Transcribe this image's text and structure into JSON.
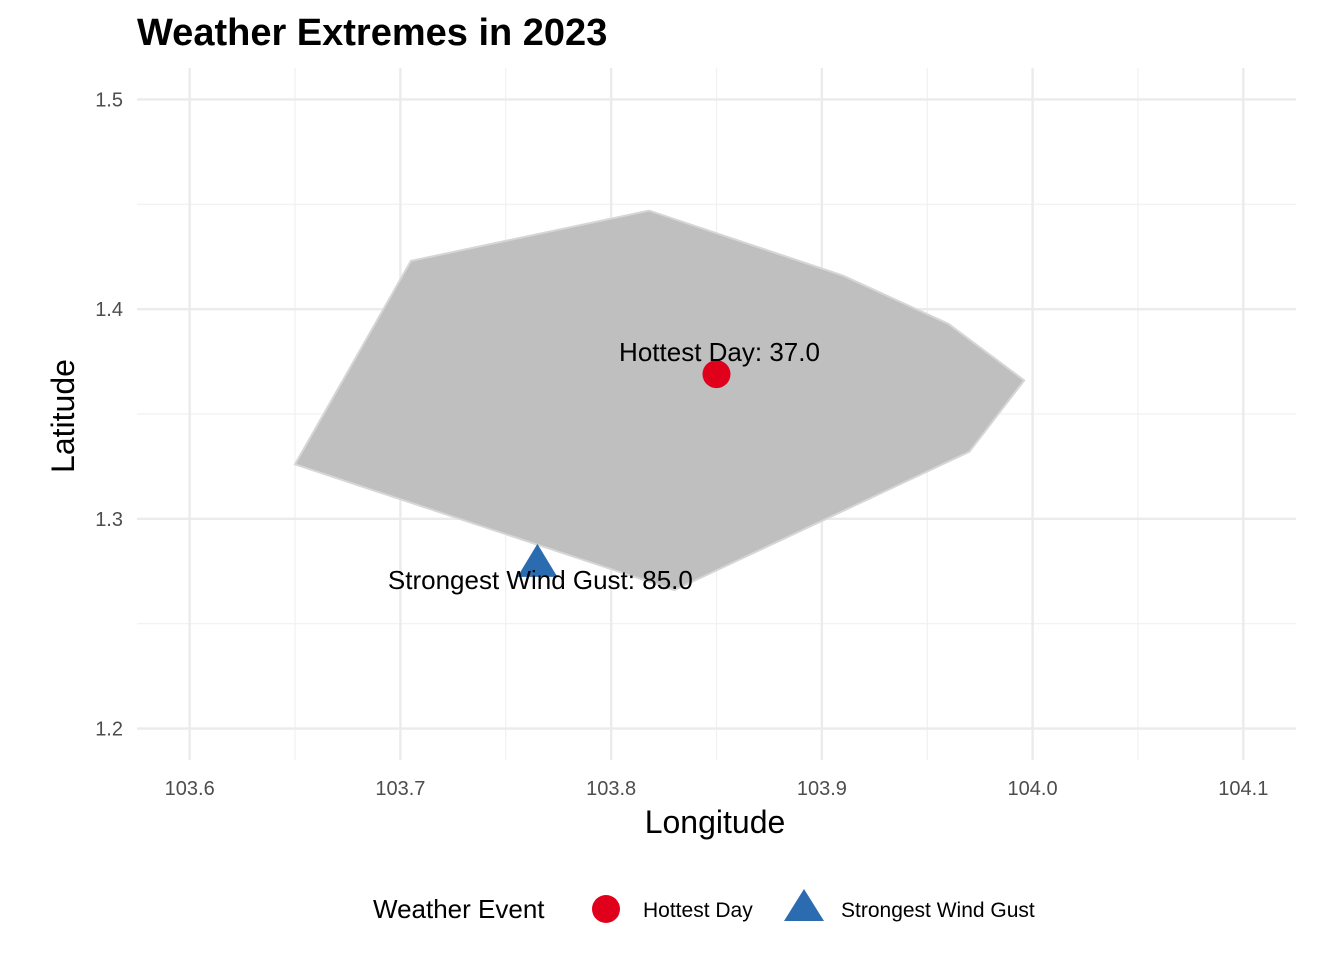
{
  "chart_data": {
    "type": "scatter",
    "title": "Weather Extremes in 2023",
    "xlabel": "Longitude",
    "ylabel": "Latitude",
    "xlim": [
      103.575,
      104.125
    ],
    "ylim": [
      1.185,
      1.515
    ],
    "x_major_ticks": [
      103.6,
      103.7,
      103.8,
      103.9,
      104.0,
      104.1
    ],
    "x_tick_labels": [
      "103.6",
      "103.7",
      "103.8",
      "103.9",
      "104.0",
      "104.1"
    ],
    "x_minor_ticks": [
      103.65,
      103.75,
      103.85,
      103.95,
      104.05
    ],
    "y_major_ticks": [
      1.2,
      1.3,
      1.4,
      1.5
    ],
    "y_tick_labels": [
      "1.2",
      "1.3",
      "1.4",
      "1.5"
    ],
    "y_minor_ticks": [
      1.25,
      1.35,
      1.45
    ],
    "grid": true,
    "region_polygon": {
      "fill": "#bfbfbf",
      "stroke": "#d6d6d6",
      "points": [
        [
          103.65,
          1.326
        ],
        [
          103.705,
          1.423
        ],
        [
          103.818,
          1.447
        ],
        [
          103.91,
          1.416
        ],
        [
          103.96,
          1.393
        ],
        [
          103.996,
          1.366
        ],
        [
          103.97,
          1.332
        ],
        [
          103.83,
          1.266
        ],
        [
          103.65,
          1.326
        ]
      ]
    },
    "series": [
      {
        "name": "Hottest Day",
        "marker": "circle",
        "color": "#e0001b",
        "x": 103.85,
        "y": 1.369,
        "label": "Hottest Day: 37.0",
        "label_anchor": "above"
      },
      {
        "name": "Strongest Wind Gust",
        "marker": "triangle",
        "color": "#2b6cb0",
        "x": 103.765,
        "y": 1.279,
        "label": "Strongest Wind Gust: 85.0",
        "label_anchor": "below"
      }
    ],
    "legend": {
      "title": "Weather Event",
      "position": "bottom",
      "entries": [
        "Hottest Day",
        "Strongest Wind Gust"
      ]
    }
  }
}
